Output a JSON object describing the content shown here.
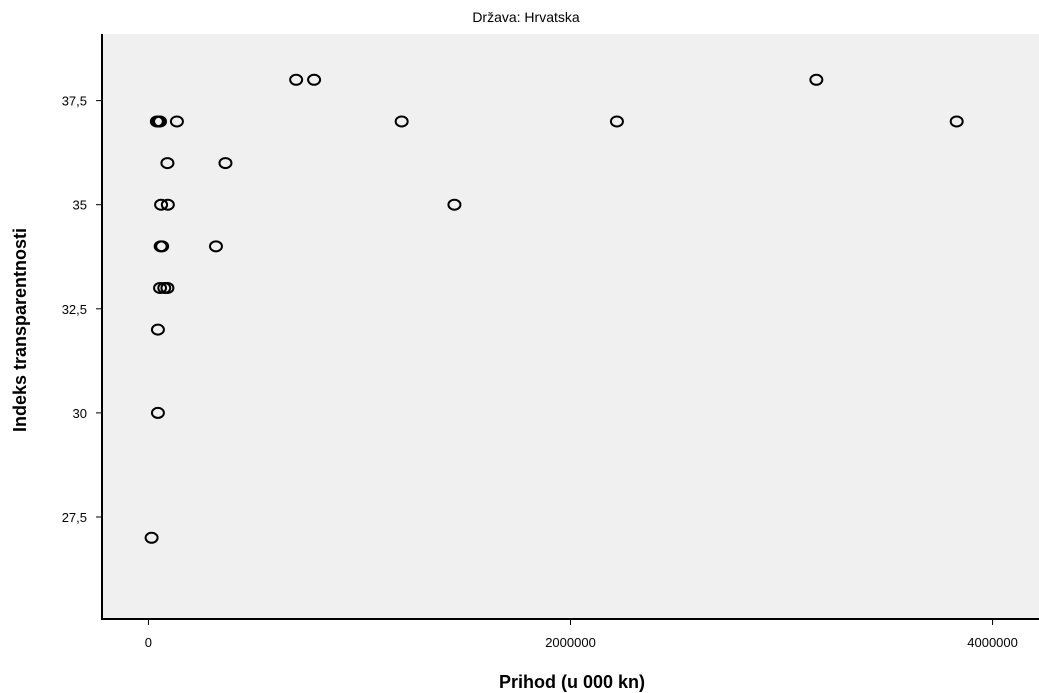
{
  "chart_data": {
    "type": "scatter",
    "title": "Država: Hrvatska",
    "xlabel": "Prihod (u 000 kn)",
    "ylabel": "Indeks transparentnosti",
    "xlim": [
      -220000,
      4220000
    ],
    "ylim": [
      25.05,
      39.1
    ],
    "x_ticks": [
      0,
      2000000,
      4000000
    ],
    "x_tick_labels": [
      "0",
      "2000000",
      "4000000"
    ],
    "y_ticks": [
      27.5,
      30,
      32.5,
      35,
      37.5
    ],
    "y_tick_labels": [
      "27,5",
      "30",
      "32,5",
      "35",
      "37,5"
    ],
    "grid": false,
    "marker": "hollow-circle",
    "colors": {
      "plot_background": "#f0f0f0",
      "marker_stroke": "#000000",
      "axis": "#000000"
    },
    "points": [
      {
        "x": 700000,
        "y": 38
      },
      {
        "x": 785000,
        "y": 38
      },
      {
        "x": 3165000,
        "y": 38
      },
      {
        "x": 40000,
        "y": 37
      },
      {
        "x": 48000,
        "y": 37
      },
      {
        "x": 55000,
        "y": 37
      },
      {
        "x": 135000,
        "y": 37
      },
      {
        "x": 1200000,
        "y": 37
      },
      {
        "x": 2220000,
        "y": 37
      },
      {
        "x": 3830000,
        "y": 37
      },
      {
        "x": 90000,
        "y": 36
      },
      {
        "x": 365000,
        "y": 36
      },
      {
        "x": 60000,
        "y": 35
      },
      {
        "x": 92000,
        "y": 35
      },
      {
        "x": 1450000,
        "y": 35
      },
      {
        "x": 58000,
        "y": 34
      },
      {
        "x": 65000,
        "y": 34
      },
      {
        "x": 320000,
        "y": 34
      },
      {
        "x": 55000,
        "y": 33
      },
      {
        "x": 75000,
        "y": 33
      },
      {
        "x": 90000,
        "y": 33
      },
      {
        "x": 45000,
        "y": 32
      },
      {
        "x": 45000,
        "y": 30
      },
      {
        "x": 15000,
        "y": 27
      }
    ]
  }
}
